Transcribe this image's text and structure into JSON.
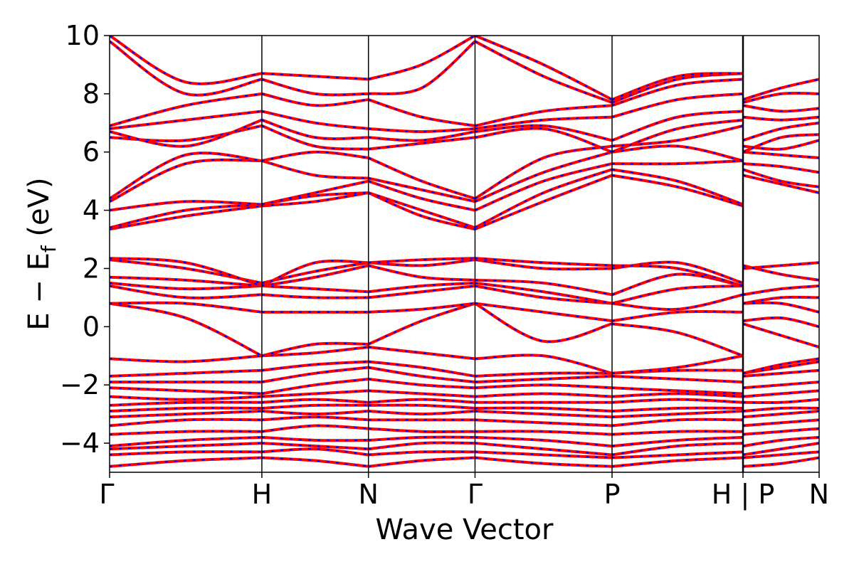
{
  "colors": {
    "background": "#ffffff",
    "band_primary": "#ff0000",
    "band_secondary": "#0000ff",
    "axes": "#000000"
  },
  "chart_data": {
    "type": "line",
    "title": "",
    "xlabel": "Wave Vector",
    "ylabel_parts": {
      "main": "E − E",
      "sub": "f",
      "unit": " (eV)"
    },
    "ylim": [
      -5,
      10
    ],
    "yticks": [
      -4,
      -2,
      0,
      2,
      4,
      6,
      8,
      10
    ],
    "ytick_labels": [
      "−4",
      "−2",
      "0",
      "2",
      "4",
      "6",
      "8",
      "10"
    ],
    "grid": false,
    "legend": "none",
    "k_path": {
      "points": [
        0.0,
        1.0,
        1.7,
        2.4,
        3.3,
        4.16,
        4.66
      ],
      "labels": [
        "Γ",
        "H",
        "N",
        "Γ",
        "P",
        "H | P",
        "N"
      ],
      "segment_breaks": [
        4.16
      ]
    },
    "series_style": "each band drawn as a solid red line overlaid with a dashed blue line (two spin channels coincide)",
    "series": [
      {
        "segment": "Γ-H",
        "x": [
          0,
          0.5,
          1.0
        ],
        "bands": [
          [
            -4.8,
            -4.6,
            -4.5
          ],
          [
            -4.4,
            -4.3,
            -4.3
          ],
          [
            -4.2,
            -4.1,
            -4.0
          ],
          [
            -4.1,
            -3.9,
            -3.8
          ],
          [
            -3.7,
            -3.6,
            -3.6
          ],
          [
            -3.4,
            -3.2,
            -3.2
          ],
          [
            -3.1,
            -3.0,
            -2.9
          ],
          [
            -2.9,
            -2.8,
            -2.8
          ],
          [
            -2.7,
            -2.6,
            -2.6
          ],
          [
            -2.4,
            -2.5,
            -2.4
          ],
          [
            -2.1,
            -2.2,
            -2.3
          ],
          [
            -1.9,
            -1.9,
            -1.9
          ],
          [
            -1.7,
            -1.6,
            -1.5
          ],
          [
            -1.1,
            -1.2,
            -1.0
          ],
          [
            0.8,
            0.3,
            -1.0
          ],
          [
            0.8,
            0.8,
            0.5
          ],
          [
            1.4,
            1.0,
            1.1
          ],
          [
            1.5,
            1.3,
            1.4
          ],
          [
            1.7,
            1.6,
            1.4
          ],
          [
            2.3,
            2.0,
            1.5
          ],
          [
            2.35,
            2.2,
            1.4
          ],
          [
            3.35,
            3.8,
            4.15
          ],
          [
            3.4,
            4.0,
            4.2
          ],
          [
            4.0,
            4.3,
            4.2
          ],
          [
            4.3,
            5.6,
            5.7
          ],
          [
            4.4,
            5.9,
            5.7
          ],
          [
            6.5,
            6.4,
            6.9
          ],
          [
            6.7,
            6.2,
            7.1
          ],
          [
            6.8,
            7.1,
            7.4
          ],
          [
            6.9,
            7.6,
            8.0
          ],
          [
            9.8,
            8.0,
            8.5
          ],
          [
            10.0,
            8.4,
            8.7
          ]
        ]
      },
      {
        "segment": "H-N",
        "x": [
          1.0,
          1.35,
          1.7
        ],
        "bands": [
          [
            -4.5,
            -4.6,
            -4.8
          ],
          [
            -4.3,
            -4.2,
            -4.4
          ],
          [
            -4.0,
            -4.1,
            -4.2
          ],
          [
            -3.8,
            -3.9,
            -3.9
          ],
          [
            -3.6,
            -3.4,
            -3.5
          ],
          [
            -3.2,
            -3.1,
            -3.2
          ],
          [
            -2.9,
            -3.0,
            -2.9
          ],
          [
            -2.8,
            -2.7,
            -2.7
          ],
          [
            -2.6,
            -2.5,
            -2.6
          ],
          [
            -2.4,
            -2.3,
            -2.2
          ],
          [
            -2.3,
            -2.0,
            -1.8
          ],
          [
            -1.9,
            -1.6,
            -1.4
          ],
          [
            -1.5,
            -1.3,
            -1.2
          ],
          [
            -1.0,
            -0.9,
            -0.7
          ],
          [
            -1.0,
            -0.6,
            -0.6
          ],
          [
            0.5,
            0.5,
            0.5
          ],
          [
            1.1,
            1.0,
            1.0
          ],
          [
            1.4,
            1.3,
            1.2
          ],
          [
            1.4,
            1.7,
            2.1
          ],
          [
            1.5,
            1.9,
            2.2
          ],
          [
            1.4,
            2.2,
            2.2
          ],
          [
            4.15,
            4.3,
            4.6
          ],
          [
            4.2,
            4.5,
            4.6
          ],
          [
            4.2,
            4.6,
            5.0
          ],
          [
            5.7,
            5.2,
            5.1
          ],
          [
            5.7,
            6.0,
            5.8
          ],
          [
            6.9,
            6.2,
            6.1
          ],
          [
            7.1,
            6.5,
            6.5
          ],
          [
            7.4,
            7.0,
            6.8
          ],
          [
            8.0,
            7.6,
            7.8
          ],
          [
            8.5,
            8.0,
            8.0
          ],
          [
            8.7,
            8.6,
            8.5
          ]
        ]
      },
      {
        "segment": "N-Γ",
        "x": [
          1.7,
          2.05,
          2.4
        ],
        "bands": [
          [
            -4.8,
            -4.6,
            -4.5
          ],
          [
            -4.4,
            -4.3,
            -4.3
          ],
          [
            -4.2,
            -4.0,
            -4.0
          ],
          [
            -3.9,
            -3.8,
            -3.8
          ],
          [
            -3.5,
            -3.6,
            -3.6
          ],
          [
            -3.2,
            -3.2,
            -3.2
          ],
          [
            -2.9,
            -3.0,
            -2.9
          ],
          [
            -2.7,
            -2.7,
            -2.8
          ],
          [
            -2.6,
            -2.5,
            -2.6
          ],
          [
            -2.2,
            -2.3,
            -2.4
          ],
          [
            -1.8,
            -2.0,
            -2.1
          ],
          [
            -1.4,
            -1.7,
            -1.9
          ],
          [
            -1.2,
            -1.4,
            -1.7
          ],
          [
            -0.7,
            -0.9,
            -1.1
          ],
          [
            -0.6,
            0.2,
            0.8
          ],
          [
            0.5,
            0.6,
            0.8
          ],
          [
            1.0,
            1.2,
            1.4
          ],
          [
            1.2,
            1.4,
            1.5
          ],
          [
            2.1,
            1.7,
            1.6
          ],
          [
            2.2,
            2.1,
            2.3
          ],
          [
            2.2,
            2.3,
            2.35
          ],
          [
            4.6,
            3.8,
            3.35
          ],
          [
            4.6,
            4.0,
            3.4
          ],
          [
            5.0,
            4.4,
            4.0
          ],
          [
            5.1,
            4.7,
            4.3
          ],
          [
            5.8,
            5.0,
            4.4
          ],
          [
            6.1,
            6.3,
            6.5
          ],
          [
            6.5,
            6.4,
            6.7
          ],
          [
            6.8,
            6.7,
            6.8
          ],
          [
            7.8,
            7.2,
            6.9
          ],
          [
            8.0,
            8.2,
            9.8
          ],
          [
            8.5,
            9.0,
            10.0
          ]
        ]
      },
      {
        "segment": "Γ-P",
        "x": [
          2.4,
          2.85,
          3.3
        ],
        "bands": [
          [
            -4.5,
            -4.7,
            -4.8
          ],
          [
            -4.3,
            -4.4,
            -4.5
          ],
          [
            -4.0,
            -4.2,
            -4.4
          ],
          [
            -3.8,
            -3.9,
            -4.1
          ],
          [
            -3.6,
            -3.6,
            -3.7
          ],
          [
            -3.2,
            -3.3,
            -3.4
          ],
          [
            -2.9,
            -3.0,
            -3.1
          ],
          [
            -2.8,
            -2.8,
            -2.9
          ],
          [
            -2.6,
            -2.6,
            -2.6
          ],
          [
            -2.4,
            -2.3,
            -2.4
          ],
          [
            -2.1,
            -2.0,
            -2.1
          ],
          [
            -1.9,
            -1.8,
            -1.7
          ],
          [
            -1.7,
            -1.6,
            -1.6
          ],
          [
            -1.1,
            -1.0,
            -1.6
          ],
          [
            0.8,
            -0.5,
            0.1
          ],
          [
            0.8,
            0.5,
            0.2
          ],
          [
            1.4,
            1.0,
            0.8
          ],
          [
            1.5,
            1.2,
            0.8
          ],
          [
            1.6,
            1.5,
            1.1
          ],
          [
            2.3,
            2.0,
            2.0
          ],
          [
            2.35,
            2.2,
            2.1
          ],
          [
            3.35,
            4.3,
            5.2
          ],
          [
            3.4,
            4.6,
            5.4
          ],
          [
            4.0,
            5.0,
            5.6
          ],
          [
            4.3,
            5.3,
            6.0
          ],
          [
            4.4,
            5.8,
            6.2
          ],
          [
            6.5,
            6.8,
            6.0
          ],
          [
            6.7,
            6.9,
            6.4
          ],
          [
            6.8,
            7.1,
            7.2
          ],
          [
            6.9,
            7.4,
            7.6
          ],
          [
            9.8,
            8.6,
            7.7
          ],
          [
            10.0,
            9.0,
            7.8
          ]
        ]
      },
      {
        "segment": "P-H",
        "x": [
          3.3,
          3.73,
          4.16
        ],
        "bands": [
          [
            -4.8,
            -4.6,
            -4.5
          ],
          [
            -4.5,
            -4.4,
            -4.3
          ],
          [
            -4.4,
            -4.1,
            -4.0
          ],
          [
            -4.1,
            -3.9,
            -3.8
          ],
          [
            -3.7,
            -3.6,
            -3.6
          ],
          [
            -3.4,
            -3.2,
            -3.2
          ],
          [
            -3.1,
            -3.0,
            -2.9
          ],
          [
            -2.9,
            -2.8,
            -2.8
          ],
          [
            -2.6,
            -2.5,
            -2.6
          ],
          [
            -2.4,
            -2.3,
            -2.4
          ],
          [
            -2.1,
            -2.2,
            -2.3
          ],
          [
            -1.7,
            -1.8,
            -1.9
          ],
          [
            -1.6,
            -1.5,
            -1.5
          ],
          [
            -1.6,
            -1.4,
            -1.0
          ],
          [
            0.1,
            -0.2,
            -1.0
          ],
          [
            0.2,
            0.5,
            0.5
          ],
          [
            0.8,
            0.6,
            1.1
          ],
          [
            0.8,
            1.3,
            1.4
          ],
          [
            1.1,
            1.8,
            1.4
          ],
          [
            2.0,
            2.2,
            1.5
          ],
          [
            2.1,
            2.0,
            1.4
          ],
          [
            5.2,
            4.8,
            4.15
          ],
          [
            5.4,
            5.0,
            4.2
          ],
          [
            5.6,
            5.6,
            5.7
          ],
          [
            6.0,
            6.2,
            5.7
          ],
          [
            6.2,
            6.4,
            6.9
          ],
          [
            6.0,
            6.8,
            7.1
          ],
          [
            6.4,
            7.2,
            7.4
          ],
          [
            7.2,
            7.8,
            8.0
          ],
          [
            7.6,
            8.3,
            8.5
          ],
          [
            7.7,
            8.5,
            8.7
          ],
          [
            7.8,
            8.6,
            8.7
          ]
        ]
      },
      {
        "segment": "P-N",
        "x": [
          4.16,
          4.41,
          4.66
        ],
        "bands": [
          [
            -4.8,
            -4.7,
            -4.5
          ],
          [
            -4.5,
            -4.4,
            -4.3
          ],
          [
            -4.4,
            -4.2,
            -4.0
          ],
          [
            -4.1,
            -3.9,
            -3.8
          ],
          [
            -3.7,
            -3.6,
            -3.5
          ],
          [
            -3.4,
            -3.3,
            -3.2
          ],
          [
            -3.1,
            -3.0,
            -2.9
          ],
          [
            -2.9,
            -2.8,
            -2.8
          ],
          [
            -2.6,
            -2.6,
            -2.5
          ],
          [
            -2.4,
            -2.3,
            -2.2
          ],
          [
            -2.1,
            -2.0,
            -1.9
          ],
          [
            -1.7,
            -1.6,
            -1.5
          ],
          [
            -1.6,
            -1.4,
            -1.2
          ],
          [
            -1.6,
            -1.3,
            -1.1
          ],
          [
            0.1,
            -0.3,
            -0.7
          ],
          [
            0.2,
            0.3,
            0.0
          ],
          [
            0.8,
            0.8,
            0.5
          ],
          [
            0.8,
            1.0,
            1.0
          ],
          [
            1.1,
            1.3,
            1.4
          ],
          [
            2.0,
            2.1,
            2.2
          ],
          [
            2.1,
            1.8,
            1.6
          ],
          [
            5.2,
            4.9,
            4.6
          ],
          [
            5.4,
            5.0,
            4.8
          ],
          [
            5.6,
            5.5,
            5.3
          ],
          [
            6.0,
            5.9,
            5.8
          ],
          [
            6.2,
            6.1,
            6.4
          ],
          [
            6.0,
            6.5,
            6.6
          ],
          [
            6.4,
            6.8,
            7.0
          ],
          [
            7.2,
            7.1,
            7.2
          ],
          [
            7.6,
            7.4,
            7.5
          ],
          [
            7.7,
            8.0,
            8.0
          ],
          [
            7.8,
            8.2,
            8.5
          ]
        ]
      }
    ]
  }
}
